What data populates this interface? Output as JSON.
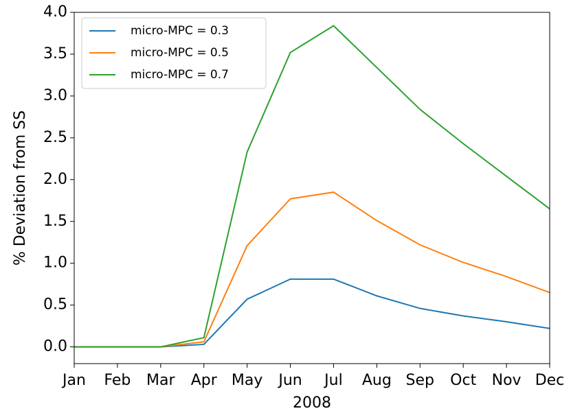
{
  "chart_data": {
    "type": "line",
    "x_label": "2008",
    "y_label": "% Deviation from SS",
    "categories": [
      "Jan",
      "Feb",
      "Mar",
      "Apr",
      "May",
      "Jun",
      "Jul",
      "Aug",
      "Sep",
      "Oct",
      "Nov",
      "Dec"
    ],
    "series": [
      {
        "name": "micro-MPC = 0.3",
        "color": "#1f77b4",
        "values": [
          0,
          0,
          0,
          0.03,
          0.57,
          0.81,
          0.81,
          0.61,
          0.46,
          0.37,
          0.3,
          0.22
        ]
      },
      {
        "name": "micro-MPC = 0.5",
        "color": "#ff7f0e",
        "values": [
          0,
          0,
          0,
          0.06,
          1.21,
          1.77,
          1.85,
          1.51,
          1.22,
          1.01,
          0.84,
          0.65
        ]
      },
      {
        "name": "micro-MPC = 0.7",
        "color": "#2ca02c",
        "values": [
          0,
          0,
          0,
          0.11,
          2.33,
          3.52,
          3.84,
          3.34,
          2.84,
          2.43,
          2.04,
          1.65
        ]
      }
    ],
    "ylim": [
      -0.2,
      4.0
    ],
    "yticks": [
      {
        "value": 0,
        "label": "0.0"
      },
      {
        "value": 0.5,
        "label": "0.5"
      },
      {
        "value": 1,
        "label": "1.0"
      },
      {
        "value": 1.5,
        "label": "1.5"
      },
      {
        "value": 2,
        "label": "2.0"
      },
      {
        "value": 2.5,
        "label": "2.5"
      },
      {
        "value": 3,
        "label": "3.0"
      },
      {
        "value": 3.5,
        "label": "3.5"
      },
      {
        "value": 4,
        "label": "4.0"
      }
    ],
    "legend": "upper left"
  }
}
